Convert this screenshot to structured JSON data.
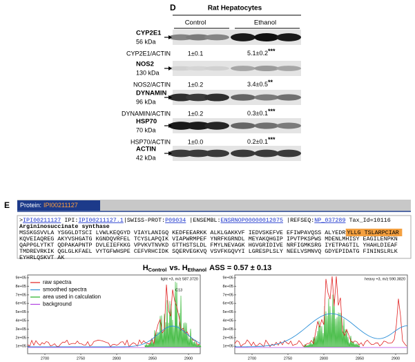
{
  "panel_d": {
    "label": "D",
    "title": "Rat Hepatocytes",
    "groups": [
      "Control",
      "Ethanol"
    ],
    "blots": [
      {
        "name": "CYP2E1",
        "size": "56 kDa",
        "ratio_label": "CYP2E1/ACTIN",
        "control": "1±0.1",
        "ethanol": "5.1±0.2",
        "significance": "***"
      },
      {
        "name": "NOS2",
        "size": "130 kDa",
        "ratio_label": "NOS2/ACTIN",
        "control": "1±0.2",
        "ethanol": "3.4±0.5",
        "significance": "**"
      },
      {
        "name": "DYNAMIN",
        "size": "96 kDa",
        "ratio_label": "DYNAMIN/ACTIN",
        "control": "1±0.2",
        "ethanol": "0.3±0.1",
        "significance": "***"
      },
      {
        "name": "HSP70",
        "size": "70 kDa",
        "ratio_label": "HSP70/ACTIN",
        "control": "1±0.0",
        "ethanol": "0.2±0.1",
        "significance": "***"
      },
      {
        "name": "ACTIN",
        "size": "42 kDa"
      }
    ]
  },
  "panel_e": {
    "label": "E",
    "protein_label": "Protein:",
    "protein_id": "IPI00211127",
    "sequence_header": [
      ">",
      "IPI00211127",
      " IPI:",
      "IPI00211127.1",
      "|SWISS-PROT:",
      "P09034",
      " |ENSEMBL:",
      "ENSRNOP00000012075",
      " |REFSEQ:",
      "NP_037289",
      " Tax_Id=10116"
    ],
    "sequence_name": "Argininosuccinate synthase",
    "sequence_first": "MSSKGSVVLA YSGGLDTSCI LVWLKEQGYD VIAYLANIGQ KEDFEEARKK ALKLGAKKVF IEDVSKEFVE EFIWPAVQSS ALYEDR",
    "highlight": "YLLG TSLARPCIAR",
    "sequence_lines": [
      "KQVEIAQREG AKYVSHGATG KGNDQVRFEL TCYSLAPQIK VIAPWRMPEF YNRFKGRNDL MEYAKQHGIP IPVTPKSPWS MDENLMHISY EAGILENPKN",
      "QAPPGLYTKT QDPAKAPNTP DVLEIEFKKG VPVKVTNVKD GTTHSTSLDL FMYLNEVAGK HGVGRIDIVE NRFIGMKSRG IYETPAGTIL YHAHLDIEAF",
      "TMDREVRKIK QGLGLKFAEL VYTGFWHSPE CEFVRHCIDK SQERVEGKVQ VSVFKGQVYI LGRESPLSLY NEELVSMNVQ GDYEPIDATG FININSLRLK",
      "EYHRLQSKVT AK"
    ],
    "title": [
      "H",
      "Control",
      "vs. H",
      "Ethanol",
      "ASS = 0.57 ± 0.13"
    ],
    "legend": [
      "raw spectra",
      "smoothed spectra",
      "area used in calculation",
      "background"
    ],
    "plots": [
      {
        "annotation": "light +3, m/z 587.3720",
        "peak_label": "C13",
        "yticks": [
          "9e+05",
          "8e+05",
          "7e+05",
          "6e+05",
          "5e+05",
          "4e+05",
          "3e+05",
          "2e+05",
          "1e+05"
        ],
        "xticks": [
          "2700",
          "2750",
          "2800",
          "2850",
          "2900"
        ]
      },
      {
        "annotation": "heavy +3, m/z 590.3820",
        "yticks": [
          "9e+05",
          "8e+05",
          "7e+05",
          "6e+05",
          "5e+05",
          "4e+05",
          "3e+05",
          "2e+05",
          "1e+05"
        ],
        "xticks": [
          "2700",
          "2750",
          "2800",
          "2850",
          "2900"
        ]
      }
    ]
  }
}
